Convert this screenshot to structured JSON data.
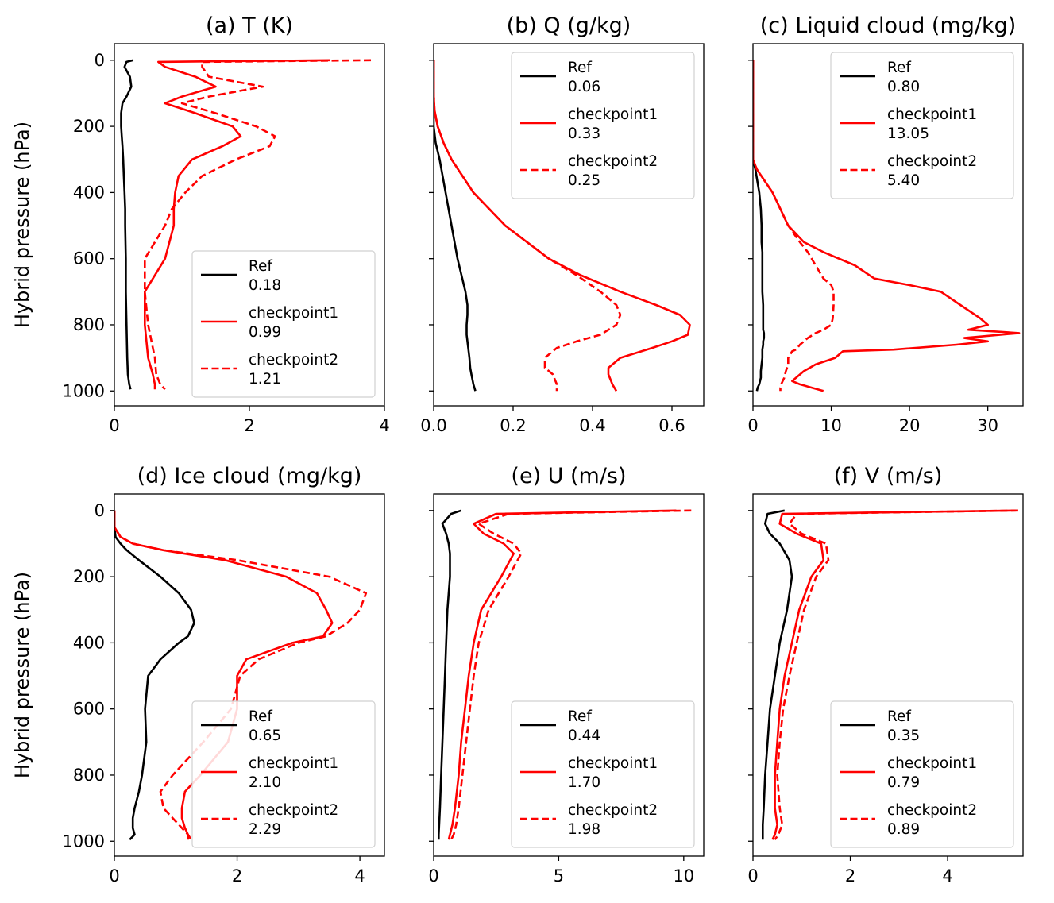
{
  "figure": {
    "y_axis_label": "Hybrid pressure (hPa)"
  },
  "chart_data": [
    {
      "type": "line",
      "title": "(a) T (K)",
      "xlabel": "",
      "ylabel": "Hybrid pressure (hPa)",
      "xlim": [
        0,
        4.0
      ],
      "ylim": [
        1045,
        -50
      ],
      "xticks": [
        0,
        2,
        4
      ],
      "xtick_labels": [
        "0",
        "2",
        "4"
      ],
      "yticks": [
        0,
        200,
        400,
        600,
        800,
        1000
      ],
      "ytick_labels": [
        "0",
        "200",
        "400",
        "600",
        "800",
        "1000"
      ],
      "legend_position": "lower-right",
      "y": [
        0,
        5,
        20,
        50,
        80,
        110,
        130,
        160,
        200,
        230,
        260,
        300,
        350,
        400,
        450,
        500,
        600,
        700,
        800,
        900,
        950,
        980,
        995
      ],
      "series": [
        {
          "name": "Ref",
          "summary": "0.18",
          "color": "#000000",
          "dash": "solid",
          "values": [
            0.28,
            0.18,
            0.15,
            0.23,
            0.25,
            0.18,
            0.12,
            0.1,
            0.1,
            0.11,
            0.12,
            0.13,
            0.14,
            0.15,
            0.16,
            0.16,
            0.17,
            0.17,
            0.18,
            0.19,
            0.2,
            0.22,
            0.24
          ]
        },
        {
          "name": "checkpoint1",
          "summary": "0.99",
          "color": "#ff0000",
          "dash": "solid",
          "values": [
            3.2,
            0.65,
            0.75,
            1.2,
            1.5,
            1.0,
            0.75,
            1.2,
            1.75,
            1.87,
            1.6,
            1.15,
            0.95,
            0.9,
            0.88,
            0.88,
            0.75,
            0.45,
            0.45,
            0.5,
            0.57,
            0.6,
            0.6
          ]
        },
        {
          "name": "checkpoint2",
          "summary": "1.21",
          "color": "#ff0000",
          "dash": "dashed",
          "values": [
            3.8,
            1.3,
            1.3,
            1.4,
            2.2,
            1.4,
            1.0,
            1.5,
            2.1,
            2.38,
            2.3,
            1.8,
            1.3,
            1.05,
            0.85,
            0.75,
            0.45,
            0.45,
            0.5,
            0.6,
            0.62,
            0.68,
            0.75
          ]
        }
      ]
    },
    {
      "type": "line",
      "title": "(b) Q (g/kg)",
      "xlabel": "",
      "ylabel": "",
      "xlim": [
        0,
        0.68
      ],
      "ylim": [
        1045,
        -50
      ],
      "xticks": [
        0,
        0.2,
        0.4,
        0.6
      ],
      "xtick_labels": [
        "0.0",
        "0.2",
        "0.4",
        "0.6"
      ],
      "yticks": [
        0,
        200,
        400,
        600,
        800,
        1000
      ],
      "ytick_labels": [
        "",
        "",
        "",
        "",
        "",
        ""
      ],
      "legend_position": "upper-right",
      "y": [
        0,
        100,
        150,
        200,
        250,
        300,
        400,
        500,
        600,
        650,
        700,
        740,
        770,
        800,
        830,
        850,
        870,
        900,
        930,
        950,
        980,
        1000
      ],
      "series": [
        {
          "name": "Ref",
          "summary": "0.06",
          "color": "#000000",
          "dash": "solid",
          "values": [
            0.0,
            0.0,
            0.0,
            0.0,
            0.005,
            0.015,
            0.03,
            0.045,
            0.06,
            0.07,
            0.08,
            0.085,
            0.085,
            0.083,
            0.083,
            0.085,
            0.087,
            0.09,
            0.092,
            0.095,
            0.1,
            0.105
          ]
        },
        {
          "name": "checkpoint1",
          "summary": "0.33",
          "color": "#ff0000",
          "dash": "solid",
          "values": [
            0.0,
            0.0,
            0.002,
            0.01,
            0.025,
            0.045,
            0.1,
            0.18,
            0.29,
            0.37,
            0.47,
            0.56,
            0.62,
            0.645,
            0.64,
            0.6,
            0.55,
            0.47,
            0.44,
            0.44,
            0.45,
            0.46
          ]
        },
        {
          "name": "checkpoint2",
          "summary": "0.25",
          "color": "#ff0000",
          "dash": "dashed",
          "values": [
            0.0,
            0.0,
            0.002,
            0.01,
            0.025,
            0.045,
            0.1,
            0.18,
            0.29,
            0.36,
            0.42,
            0.46,
            0.47,
            0.46,
            0.42,
            0.36,
            0.31,
            0.28,
            0.28,
            0.3,
            0.31,
            0.31
          ]
        }
      ]
    },
    {
      "type": "line",
      "title": "(c) Liquid cloud (mg/kg)",
      "xlabel": "",
      "ylabel": "",
      "xlim": [
        0,
        34.5
      ],
      "ylim": [
        1045,
        -50
      ],
      "xticks": [
        0,
        10,
        20,
        30
      ],
      "xtick_labels": [
        "0",
        "10",
        "20",
        "30"
      ],
      "yticks": [
        0,
        200,
        400,
        600,
        800,
        1000
      ],
      "ytick_labels": [
        "",
        "",
        "",
        "",
        "",
        ""
      ],
      "legend_position": "upper-right",
      "y": [
        0,
        300,
        330,
        400,
        450,
        500,
        550,
        580,
        620,
        660,
        680,
        700,
        740,
        780,
        800,
        815,
        825,
        840,
        850,
        860,
        875,
        880,
        900,
        920,
        940,
        960,
        970,
        980,
        990,
        1000
      ],
      "series": [
        {
          "name": "Ref",
          "summary": "0.80",
          "color": "#000000",
          "dash": "solid",
          "values": [
            0,
            0,
            0.3,
            0.8,
            1.0,
            1.1,
            1.1,
            1.2,
            1.2,
            1.2,
            1.2,
            1.2,
            1.3,
            1.3,
            1.3,
            1.3,
            1.4,
            1.4,
            1.3,
            1.3,
            1.2,
            1.2,
            1.2,
            1.1,
            1.0,
            1.0,
            0.9,
            0.8,
            0.6,
            0.5
          ]
        },
        {
          "name": "checkpoint1",
          "summary": "13.05",
          "color": "#ff0000",
          "dash": "solid",
          "values": [
            0,
            0,
            0.5,
            2.5,
            3.5,
            4.5,
            6.5,
            9.0,
            13.0,
            15.5,
            20.0,
            24.0,
            26.5,
            29.0,
            30.0,
            27.5,
            34.0,
            27.0,
            30.0,
            26.0,
            18.0,
            11.5,
            10.5,
            8.0,
            6.5,
            5.5,
            5.0,
            6.0,
            7.5,
            9.0
          ]
        },
        {
          "name": "checkpoint2",
          "summary": "5.40",
          "color": "#ff0000",
          "dash": "dashed",
          "values": [
            0,
            0,
            0.5,
            2.5,
            3.5,
            4.5,
            6.0,
            7.0,
            8.0,
            9.0,
            10.0,
            10.3,
            10.3,
            10.2,
            10.0,
            9.0,
            8.0,
            7.0,
            6.5,
            6.0,
            5.5,
            5.0,
            4.5,
            4.5,
            4.2,
            4.0,
            3.8,
            3.6,
            3.5,
            3.5
          ]
        }
      ]
    },
    {
      "type": "line",
      "title": "(d) Ice cloud (mg/kg)",
      "xlabel": "",
      "ylabel": "Hybrid pressure (hPa)",
      "xlim": [
        0,
        4.4
      ],
      "ylim": [
        1045,
        -50
      ],
      "xticks": [
        0,
        2,
        4
      ],
      "xtick_labels": [
        "0",
        "2",
        "4"
      ],
      "yticks": [
        0,
        200,
        400,
        600,
        800,
        1000
      ],
      "ytick_labels": [
        "0",
        "200",
        "400",
        "600",
        "800",
        "1000"
      ],
      "legend_position": "lower-right",
      "y": [
        0,
        50,
        80,
        100,
        120,
        150,
        200,
        250,
        300,
        340,
        380,
        400,
        450,
        500,
        600,
        700,
        800,
        850,
        900,
        930,
        960,
        980,
        995
      ],
      "series": [
        {
          "name": "Ref",
          "summary": "0.65",
          "color": "#000000",
          "dash": "solid",
          "values": [
            0.0,
            0.0,
            0.02,
            0.1,
            0.2,
            0.4,
            0.75,
            1.05,
            1.25,
            1.3,
            1.2,
            1.05,
            0.75,
            0.55,
            0.5,
            0.52,
            0.45,
            0.4,
            0.33,
            0.3,
            0.3,
            0.33,
            0.25
          ]
        },
        {
          "name": "checkpoint1",
          "summary": "2.10",
          "color": "#ff0000",
          "dash": "solid",
          "values": [
            0.0,
            0.0,
            0.1,
            0.3,
            0.8,
            1.8,
            2.8,
            3.3,
            3.45,
            3.55,
            3.4,
            2.9,
            2.15,
            2.0,
            2.0,
            1.85,
            1.4,
            1.15,
            1.1,
            1.1,
            1.15,
            1.2,
            1.2
          ]
        },
        {
          "name": "checkpoint2",
          "summary": "2.29",
          "color": "#ff0000",
          "dash": "dashed",
          "values": [
            0.0,
            0.0,
            0.1,
            0.3,
            0.8,
            2.0,
            3.5,
            4.1,
            4.0,
            3.8,
            3.45,
            3.0,
            2.35,
            2.05,
            1.9,
            1.45,
            0.95,
            0.75,
            0.8,
            0.95,
            1.1,
            1.2,
            1.25
          ]
        }
      ]
    },
    {
      "type": "line",
      "title": "(e) U (m/s)",
      "xlabel": "",
      "ylabel": "",
      "xlim": [
        0,
        10.8
      ],
      "ylim": [
        1045,
        -50
      ],
      "xticks": [
        0,
        5,
        10
      ],
      "xtick_labels": [
        "0",
        "5",
        "10"
      ],
      "yticks": [
        0,
        200,
        400,
        600,
        800,
        1000
      ],
      "ytick_labels": [
        "",
        "",
        "",
        "",
        "",
        ""
      ],
      "legend_position": "lower-right",
      "y": [
        0,
        10,
        40,
        70,
        100,
        130,
        200,
        300,
        400,
        500,
        600,
        700,
        800,
        900,
        950,
        980,
        995
      ],
      "series": [
        {
          "name": "Ref",
          "summary": "0.44",
          "color": "#000000",
          "dash": "solid",
          "values": [
            1.1,
            0.7,
            0.35,
            0.5,
            0.6,
            0.65,
            0.65,
            0.55,
            0.5,
            0.45,
            0.4,
            0.35,
            0.3,
            0.25,
            0.22,
            0.2,
            0.2
          ]
        },
        {
          "name": "checkpoint1",
          "summary": "1.70",
          "color": "#ff0000",
          "dash": "solid",
          "values": [
            9.7,
            2.5,
            1.6,
            2.0,
            2.8,
            3.2,
            2.7,
            1.9,
            1.6,
            1.4,
            1.25,
            1.1,
            1.0,
            0.85,
            0.75,
            0.65,
            0.6
          ]
        },
        {
          "name": "checkpoint2",
          "summary": "1.98",
          "color": "#ff0000",
          "dash": "dashed",
          "values": [
            10.3,
            3.0,
            1.8,
            2.4,
            3.2,
            3.5,
            3.0,
            2.2,
            1.8,
            1.6,
            1.45,
            1.3,
            1.15,
            1.0,
            0.9,
            0.8,
            0.7
          ]
        }
      ]
    },
    {
      "type": "line",
      "title": "(f) V (m/s)",
      "xlabel": "",
      "ylabel": "",
      "xlim": [
        0,
        5.55
      ],
      "ylim": [
        1045,
        -50
      ],
      "xticks": [
        0,
        2,
        4
      ],
      "xtick_labels": [
        "0",
        "2",
        "4"
      ],
      "yticks": [
        0,
        200,
        400,
        600,
        800,
        1000
      ],
      "ytick_labels": [
        "",
        "",
        "",
        "",
        "",
        ""
      ],
      "legend_position": "lower-right",
      "y": [
        0,
        10,
        40,
        70,
        100,
        150,
        200,
        300,
        400,
        500,
        600,
        700,
        800,
        900,
        950,
        980,
        995
      ],
      "series": [
        {
          "name": "Ref",
          "summary": "0.35",
          "color": "#000000",
          "dash": "solid",
          "values": [
            0.65,
            0.3,
            0.25,
            0.35,
            0.55,
            0.75,
            0.8,
            0.7,
            0.55,
            0.45,
            0.35,
            0.3,
            0.25,
            0.22,
            0.2,
            0.2,
            0.2
          ]
        },
        {
          "name": "checkpoint1",
          "summary": "0.79",
          "color": "#ff0000",
          "dash": "solid",
          "values": [
            5.4,
            0.6,
            0.55,
            0.9,
            1.4,
            1.45,
            1.2,
            0.95,
            0.8,
            0.65,
            0.55,
            0.5,
            0.45,
            0.45,
            0.5,
            0.45,
            0.4
          ]
        },
        {
          "name": "checkpoint2",
          "summary": "0.89",
          "color": "#ff0000",
          "dash": "dashed",
          "values": [
            5.45,
            0.9,
            0.75,
            1.0,
            1.5,
            1.55,
            1.3,
            1.05,
            0.9,
            0.75,
            0.62,
            0.55,
            0.5,
            0.55,
            0.6,
            0.52,
            0.45
          ]
        }
      ]
    }
  ]
}
